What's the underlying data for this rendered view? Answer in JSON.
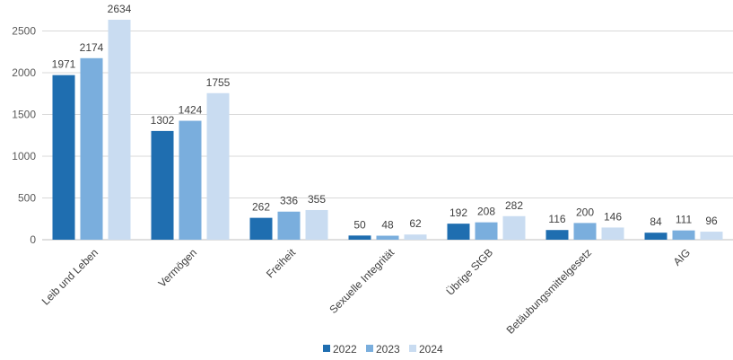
{
  "chart_data": {
    "type": "bar",
    "title": "",
    "xlabel": "",
    "ylabel": "",
    "ylim": [
      0,
      2634
    ],
    "yticks": [
      0,
      500,
      1000,
      1500,
      2000,
      2500
    ],
    "grid": true,
    "legend_position": "bottom",
    "categories": [
      "Leib und Leben",
      "Vermögen",
      "Freiheit",
      "Sexuelle Integrität",
      "Übrige StGB",
      "Betäubungsmittelgesetz",
      "AIG"
    ],
    "series": [
      {
        "name": "2022",
        "color": "#1F6EB0",
        "values": [
          1971,
          1302,
          262,
          50,
          192,
          116,
          84
        ]
      },
      {
        "name": "2023",
        "color": "#7AAEDD",
        "values": [
          2174,
          1424,
          336,
          48,
          208,
          200,
          111
        ]
      },
      {
        "name": "2024",
        "color": "#C9DCF1",
        "values": [
          2634,
          1755,
          355,
          62,
          282,
          146,
          96
        ]
      }
    ]
  }
}
